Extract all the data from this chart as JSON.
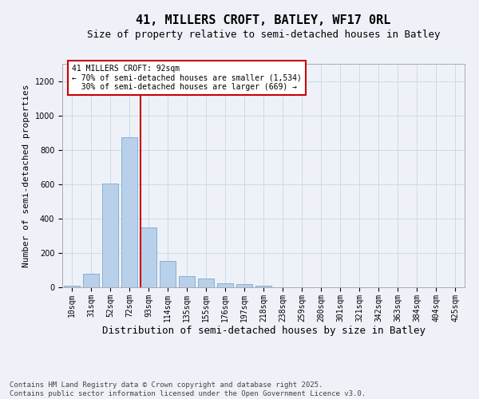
{
  "title1": "41, MILLERS CROFT, BATLEY, WF17 0RL",
  "title2": "Size of property relative to semi-detached houses in Batley",
  "xlabel": "Distribution of semi-detached houses by size in Batley",
  "ylabel": "Number of semi-detached properties",
  "categories": [
    "10sqm",
    "31sqm",
    "52sqm",
    "72sqm",
    "93sqm",
    "114sqm",
    "135sqm",
    "155sqm",
    "176sqm",
    "197sqm",
    "218sqm",
    "238sqm",
    "259sqm",
    "280sqm",
    "301sqm",
    "321sqm",
    "342sqm",
    "363sqm",
    "384sqm",
    "404sqm",
    "425sqm"
  ],
  "values": [
    10,
    80,
    605,
    875,
    350,
    155,
    65,
    50,
    22,
    18,
    8,
    0,
    0,
    0,
    0,
    0,
    0,
    0,
    0,
    0,
    0
  ],
  "bar_color": "#b8d0ea",
  "bar_edge_color": "#7aaad0",
  "vline_x_index": 4,
  "vline_color": "#cc0000",
  "annotation_text": "41 MILLERS CROFT: 92sqm\n← 70% of semi-detached houses are smaller (1,534)\n  30% of semi-detached houses are larger (669) →",
  "annotation_box_color": "#ffffff",
  "annotation_box_edge": "#cc0000",
  "ylim": [
    0,
    1300
  ],
  "yticks": [
    0,
    200,
    400,
    600,
    800,
    1000,
    1200
  ],
  "grid_color": "#d0d8e8",
  "bg_color": "#eef2f8",
  "footer": "Contains HM Land Registry data © Crown copyright and database right 2025.\nContains public sector information licensed under the Open Government Licence v3.0.",
  "title1_fontsize": 11,
  "title2_fontsize": 9,
  "xlabel_fontsize": 9,
  "ylabel_fontsize": 8,
  "tick_fontsize": 7,
  "annot_fontsize": 7,
  "footer_fontsize": 6.5
}
